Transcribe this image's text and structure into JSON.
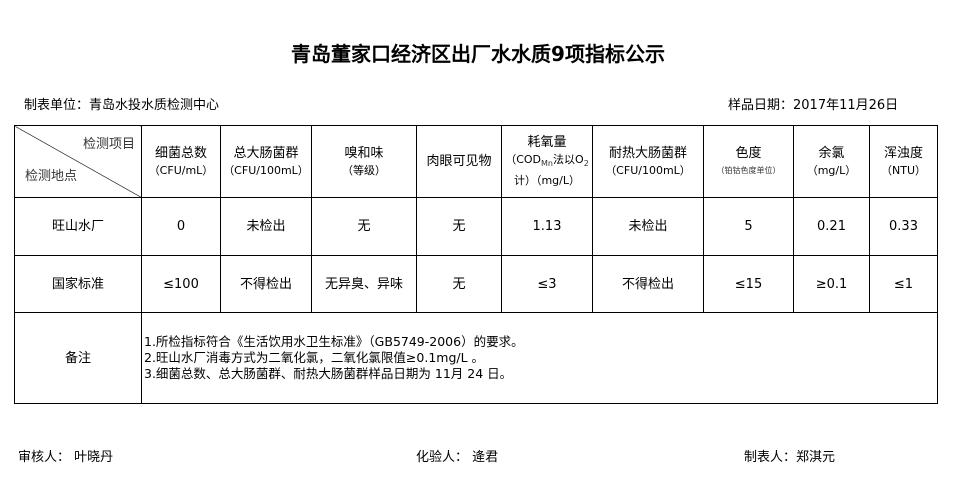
{
  "title": "青岛董家口经济区出厂水水质9项指标公示",
  "unit": "制表单位：青岛水投水质检测中心",
  "date": "样品日期：2017年11月26日",
  "header": {
    "item": "检测项目",
    "site": "检测地点",
    "cols": [
      {
        "name": "细菌总数",
        "unit": "（CFU/mL）"
      },
      {
        "name": "总大肠菌群",
        "unit": "（CFU/100mL）"
      },
      {
        "name": "嗅和味",
        "unit": "（等级）"
      },
      {
        "name": "肉眼可见物",
        "unit": ""
      },
      {
        "name": "耗氧量",
        "unit": "（COD",
        "sub": "Mn",
        "unit2": "法以O",
        "sub2": "2",
        "unit3": "计）（mg/L）"
      },
      {
        "name": "耐热大肠菌群",
        "unit": "（CFU/100mL）"
      },
      {
        "name": "色度",
        "unit": "（铂钴色度单位）"
      },
      {
        "name": "余氯",
        "unit": "（mg/L）"
      },
      {
        "name": "浑浊度",
        "unit": "（NTU）"
      }
    ]
  },
  "rows": [
    {
      "site": "旺山水厂",
      "values": [
        "0",
        "未检出",
        "无",
        "无",
        "1.13",
        "未检出",
        "5",
        "0.21",
        "0.33"
      ]
    },
    {
      "site": "国家标准",
      "values": [
        "≤100",
        "不得检出",
        "无异臭、异味",
        "无",
        "≤3",
        "不得检出",
        "≤15",
        "≥0.1",
        "≤1"
      ]
    }
  ],
  "remarks": {
    "label": "备注",
    "lines": [
      "1.所检指标符合《生活饮用水卫生标准》（GB5749-2006）的要求。",
      "2.旺山水厂消毒方式为二氧化氯，二氧化氯限值≥0.1mg/L 。",
      "3.细菌总数、总大肠菌群、耐热大肠菌群样品日期为 11月 24 日。"
    ]
  },
  "footer": {
    "reviewer": "审核人： 叶晓丹",
    "tester": "化验人： 逄君",
    "maker": "制表人：郑淇元"
  }
}
